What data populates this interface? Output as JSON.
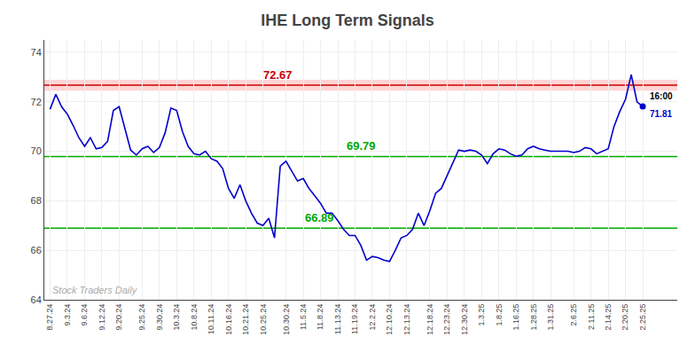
{
  "chart_data": {
    "type": "line",
    "title": "IHE Long Term Signals",
    "categories": [
      "8.27.24",
      null,
      null,
      "9.3.24",
      null,
      null,
      "9.6.24",
      null,
      null,
      "9.12.24",
      null,
      null,
      "9.20.24",
      null,
      null,
      null,
      "9.25.24",
      null,
      null,
      "9.30.24",
      null,
      null,
      "10.3.24",
      null,
      null,
      "10.8.24",
      null,
      null,
      "10.11.24",
      null,
      null,
      "10.16.24",
      null,
      null,
      "10.21.24",
      null,
      null,
      "10.25.24",
      null,
      null,
      null,
      "10.30.24",
      null,
      null,
      "11.5.24",
      null,
      null,
      "11.8.24",
      null,
      null,
      "11.13.24",
      null,
      null,
      "11.19.24",
      null,
      null,
      "12.2.24",
      null,
      null,
      "12.10.24",
      null,
      null,
      "12.13.24",
      null,
      null,
      null,
      "12.18.24",
      null,
      null,
      "12.23.24",
      null,
      null,
      "12.30.24",
      null,
      null,
      "1.3.25",
      null,
      null,
      "1.8.25",
      null,
      null,
      "1.16.25",
      null,
      null,
      "1.28.25",
      null,
      null,
      "1.31.25",
      null,
      null,
      null,
      "2.6.25",
      null,
      null,
      "2.11.25",
      null,
      null,
      "2.14.25",
      null,
      null,
      "2.20.25",
      null,
      null,
      "2.25.25"
    ],
    "values": [
      71.7,
      72.3,
      71.8,
      71.5,
      71.05,
      70.55,
      70.2,
      70.55,
      70.1,
      70.15,
      70.4,
      71.65,
      71.8,
      70.9,
      70.05,
      69.85,
      70.1,
      70.2,
      69.95,
      70.15,
      70.75,
      71.75,
      71.65,
      70.8,
      70.2,
      69.9,
      69.85,
      70.0,
      69.7,
      69.6,
      69.3,
      68.5,
      68.1,
      68.65,
      68.0,
      67.5,
      67.1,
      67.0,
      67.3,
      66.5,
      69.4,
      69.6,
      69.2,
      68.8,
      68.9,
      68.5,
      68.2,
      67.9,
      67.5,
      67.5,
      67.2,
      66.85,
      66.6,
      66.6,
      66.2,
      65.6,
      65.75,
      65.7,
      65.6,
      65.55,
      66.0,
      66.5,
      66.6,
      66.85,
      67.5,
      67.0,
      67.6,
      68.3,
      68.5,
      69.0,
      69.5,
      70.05,
      70.0,
      70.05,
      70.0,
      69.85,
      69.5,
      69.9,
      70.1,
      70.05,
      69.9,
      69.8,
      69.85,
      70.1,
      70.2,
      70.1,
      70.05,
      70.0,
      70.0,
      70.0,
      70.0,
      69.95,
      70.0,
      70.15,
      70.1,
      69.9,
      70.0,
      70.1,
      71.0,
      71.6,
      72.1,
      73.1,
      72.0,
      71.81
    ],
    "color": "#0000cc",
    "ylim": [
      64,
      74.5
    ],
    "yticks": [
      64,
      66,
      68,
      70,
      72,
      74
    ],
    "grid": true,
    "reference_lines": [
      {
        "value": 72.67,
        "label": "72.67",
        "color": "#cc0000",
        "band_color": "#ffcccc"
      },
      {
        "value": 69.79,
        "label": "69.79",
        "color": "#00aa00"
      },
      {
        "value": 66.89,
        "label": "66.89",
        "color": "#00aa00"
      }
    ],
    "watermark": "Stock Traders Daily",
    "last_label": "16:00",
    "last_value_label": "71.81"
  }
}
